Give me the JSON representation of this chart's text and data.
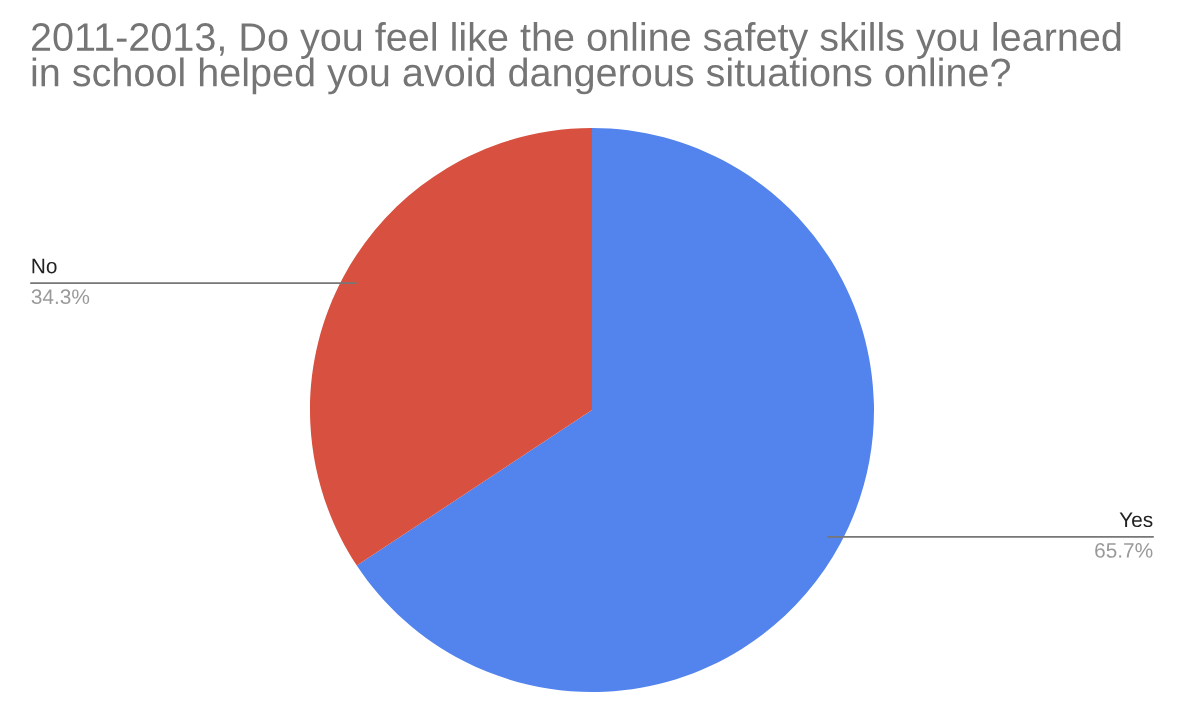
{
  "chart_data": {
    "type": "pie",
    "title": "2011-2013, Do you feel like the online safety skills you learned\nin school helped you avoid dangerous situations online?",
    "categories": [
      "Yes",
      "No"
    ],
    "values": [
      65.7,
      34.3
    ],
    "value_labels": [
      "65.7%",
      "34.3%"
    ],
    "colors": [
      "#5383ec",
      "#d85140"
    ],
    "legend": false
  }
}
